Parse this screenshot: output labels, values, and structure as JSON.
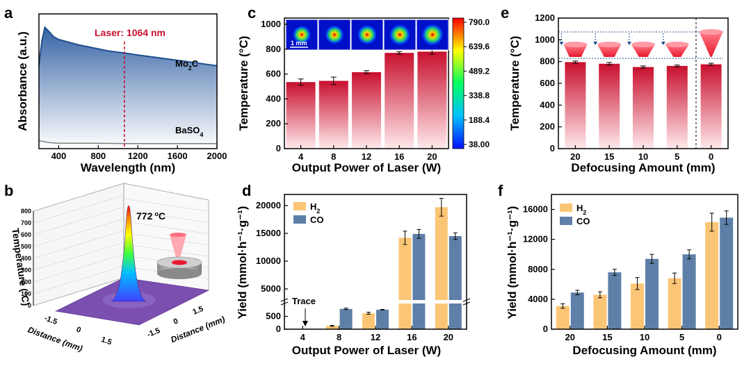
{
  "panel_letters": {
    "a": "a",
    "b": "b",
    "c": "c",
    "d": "d",
    "e": "e",
    "f": "f"
  },
  "colors": {
    "mo2c_line": "#1f4e8c",
    "fill_top": "#2a5aa0",
    "baso4_line": "#7f7f7f",
    "laser_line": "#c8102e",
    "bar_top": "#c8102e",
    "h2": "#fbc576",
    "co": "#5e7fa7"
  },
  "chart_data": [
    {
      "panel": "a",
      "type": "line",
      "title": "",
      "xlabel": "Wavelength (nm)",
      "ylabel": "Absorbance (a.u.)",
      "xlim": [
        200,
        2000
      ],
      "x_ticks": [
        "400",
        "800",
        "1200",
        "1600",
        "2000"
      ],
      "annotation": "Laser: 1064 nm",
      "laser_x": 1064,
      "series": [
        {
          "name": "Mo2C",
          "name_main": "Mo",
          "name_sub": "2",
          "name_tail": "C",
          "x": [
            200,
            230,
            260,
            300,
            350,
            400,
            500,
            600,
            700,
            800,
            900,
            1000,
            1064,
            1200,
            1400,
            1600,
            1800,
            2000
          ],
          "y": [
            0.62,
            0.8,
            0.9,
            0.87,
            0.83,
            0.81,
            0.79,
            0.77,
            0.755,
            0.74,
            0.725,
            0.715,
            0.71,
            0.695,
            0.675,
            0.655,
            0.635,
            0.615
          ]
        },
        {
          "name": "BaSO4",
          "name_main": "BaSO",
          "name_sub": "4",
          "x": [
            200,
            300,
            400,
            600,
            800,
            1000,
            1200,
            1400,
            1600,
            1800,
            2000
          ],
          "y": [
            0.06,
            0.045,
            0.04,
            0.04,
            0.04,
            0.038,
            0.037,
            0.037,
            0.037,
            0.037,
            0.037
          ]
        }
      ]
    },
    {
      "panel": "b",
      "type": "surface3d",
      "zlabel": "Temperature (°C)",
      "xlabel": "Distance (mm)",
      "ylabel": "Distance (mm)",
      "z_ticks": [
        "0",
        "100",
        "200",
        "300",
        "400",
        "500",
        "600",
        "700",
        "800"
      ],
      "x_ticks": [
        "-1.5",
        "0",
        "1.5"
      ],
      "y_ticks": [
        "-1.5",
        "0",
        "1.5"
      ],
      "peak_label": "772",
      "peak_unit_super": "o",
      "peak_unit_tail": "C"
    },
    {
      "panel": "c",
      "type": "bar",
      "xlabel": "Output Power of Laser (W)",
      "ylabel": "Temperature (°C)",
      "categories": [
        "4",
        "8",
        "12",
        "16",
        "20"
      ],
      "values": [
        535,
        545,
        615,
        770,
        780
      ],
      "errors": [
        25,
        30,
        12,
        10,
        20
      ],
      "ylim": [
        0,
        1050
      ],
      "y_ticks": [
        "0",
        "200",
        "400",
        "600",
        "800",
        "1000"
      ],
      "colorbar_ticks": [
        "790.0",
        "639.6",
        "489.2",
        "338.8",
        "188.4",
        "38.00"
      ],
      "scale_bar": "1 mm"
    },
    {
      "panel": "d",
      "type": "bar",
      "xlabel": "Output Power of Laser (W)",
      "ylabel": "Yield (mmol·h⁻¹·g⁻¹)",
      "categories": [
        "4",
        "8",
        "12",
        "16",
        "20"
      ],
      "annotation": "Trace",
      "upper_ticks": [
        "5000",
        "10000",
        "15000",
        "20000"
      ],
      "lower_ticks": [
        "0",
        "500"
      ],
      "series": [
        {
          "name": "H2",
          "name_main": "H",
          "name_sub": "2",
          "values": [
            5,
            130,
            620,
            14200,
            19700
          ],
          "errors": [
            0,
            20,
            40,
            1200,
            1600
          ]
        },
        {
          "name": "CO",
          "name_main": "CO",
          "values": [
            15,
            790,
            1260,
            14900,
            14500
          ],
          "errors": [
            0,
            30,
            50,
            800,
            600
          ]
        }
      ]
    },
    {
      "panel": "e",
      "type": "bar",
      "xlabel": "Defocusing Amount (mm)",
      "ylabel": "Temperature (°C)",
      "categories": [
        "20",
        "15",
        "10",
        "5",
        "0"
      ],
      "values": [
        795,
        780,
        750,
        760,
        775
      ],
      "errors": [
        10,
        12,
        10,
        8,
        10
      ],
      "ylim": [
        0,
        1200
      ],
      "y_ticks": [
        "0",
        "200",
        "400",
        "600",
        "800",
        "1000",
        "1200"
      ]
    },
    {
      "panel": "f",
      "type": "bar",
      "xlabel": "Defocusing Amount (mm)",
      "ylabel": "Yield (mmol·h⁻¹·g⁻¹)",
      "categories": [
        "20",
        "15",
        "10",
        "5",
        "0"
      ],
      "ylim": [
        0,
        18000
      ],
      "y_ticks": [
        "0",
        "4000",
        "8000",
        "12000",
        "16000"
      ],
      "series": [
        {
          "name": "H2",
          "name_main": "H",
          "name_sub": "2",
          "values": [
            3100,
            4600,
            6100,
            6800,
            14300
          ],
          "errors": [
            300,
            400,
            800,
            700,
            1200
          ]
        },
        {
          "name": "CO",
          "name_main": "CO",
          "values": [
            4900,
            7600,
            9400,
            10000,
            14900
          ],
          "errors": [
            300,
            400,
            600,
            600,
            900
          ]
        }
      ]
    }
  ]
}
